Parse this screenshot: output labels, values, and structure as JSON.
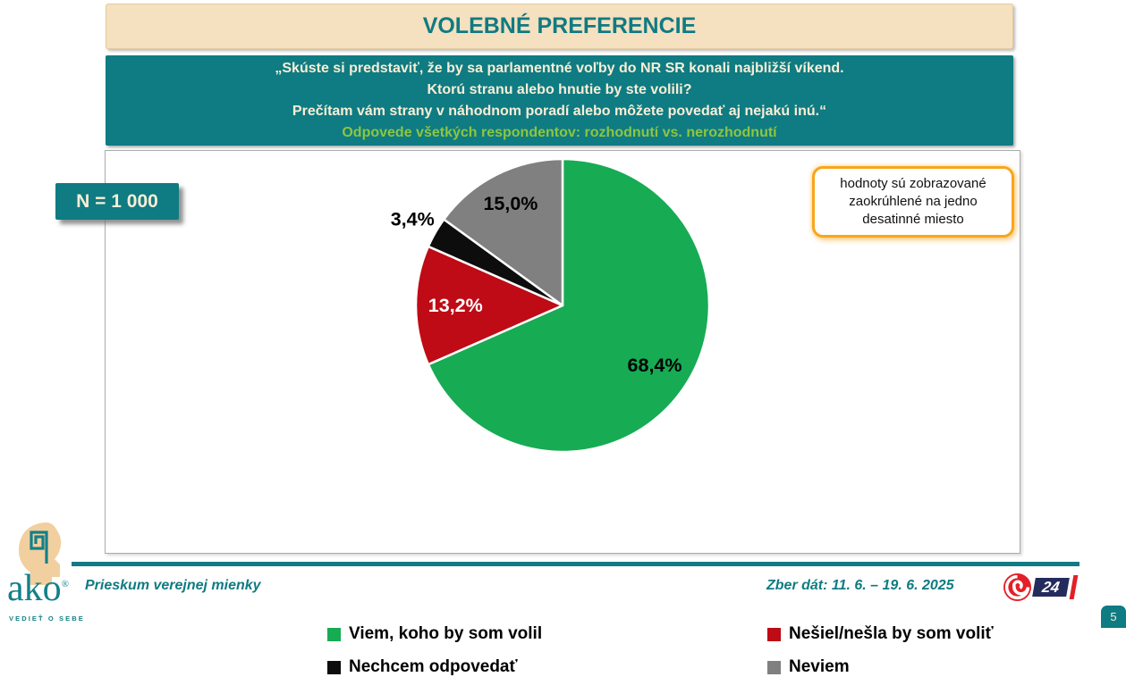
{
  "slide": {
    "title": "VOLEBNÉ PREFERENCIE",
    "question_lines": [
      "„Skúste si predstaviť, že by sa parlamentné voľby do NR SR konali najbližší víkend.",
      "Ktorú stranu alebo hnutie by ste volili?",
      "Prečítam vám strany v náhodnom poradí alebo môžete povedať aj nejakú inú.“"
    ],
    "subtitle": "Odpovede všetkých respondentov: rozhodnutí vs. nerozhodnutí",
    "sample_badge": "N = 1 000",
    "note": "hodnoty sú zobrazované zaokrúhlené na jedno desatinné miesto",
    "page_number": "5"
  },
  "footer": {
    "left_text": "Prieskum verejnej mienky",
    "right_text": "Zber dát: 11. 6. – 19. 6. 2025",
    "ako_logo": {
      "word": "ako",
      "registered": "®",
      "tagline": "VEDIEŤ O SEBE"
    },
    "channel_logo": "24"
  },
  "colors": {
    "teal": "#0F7B82",
    "beige": "#F5E0C0",
    "cream_text": "#F8EED6",
    "subtitle_green": "#8DC63F",
    "note_border_orange": "#F9A51B",
    "pie_green": "#17AB54",
    "pie_red": "#BE0B15",
    "pie_black": "#0D0D0D",
    "pie_gray": "#808080",
    "logo_navy": "#232C5C",
    "logo_red": "#E32028"
  },
  "chart_data": {
    "type": "pie",
    "title": "VOLEBNÉ PREFERENCIE",
    "sample_size": "N = 1 000",
    "direction": "clockwise",
    "start_angle_deg": 0,
    "legend_position": "bottom",
    "slices": [
      {
        "label": "Viem, koho by som volil",
        "value": 68.4,
        "display": "68,4%",
        "color": "#17AB54",
        "label_color": "#000000",
        "label_radius": 0.75
      },
      {
        "label": "Nešiel/nešla by som voliť",
        "value": 13.2,
        "display": "13,2%",
        "color": "#BE0B15",
        "label_color": "#FFFFFF",
        "label_radius": 0.73
      },
      {
        "label": "Nechcem odpovedať",
        "value": 3.4,
        "display": "3,4%",
        "color": "#0D0D0D",
        "label_color": "#000000",
        "label_radius": 1.18
      },
      {
        "label": "Neviem",
        "value": 15.0,
        "display": "15,0%",
        "color": "#808080",
        "label_color": "#000000",
        "label_radius": 0.78
      }
    ]
  }
}
